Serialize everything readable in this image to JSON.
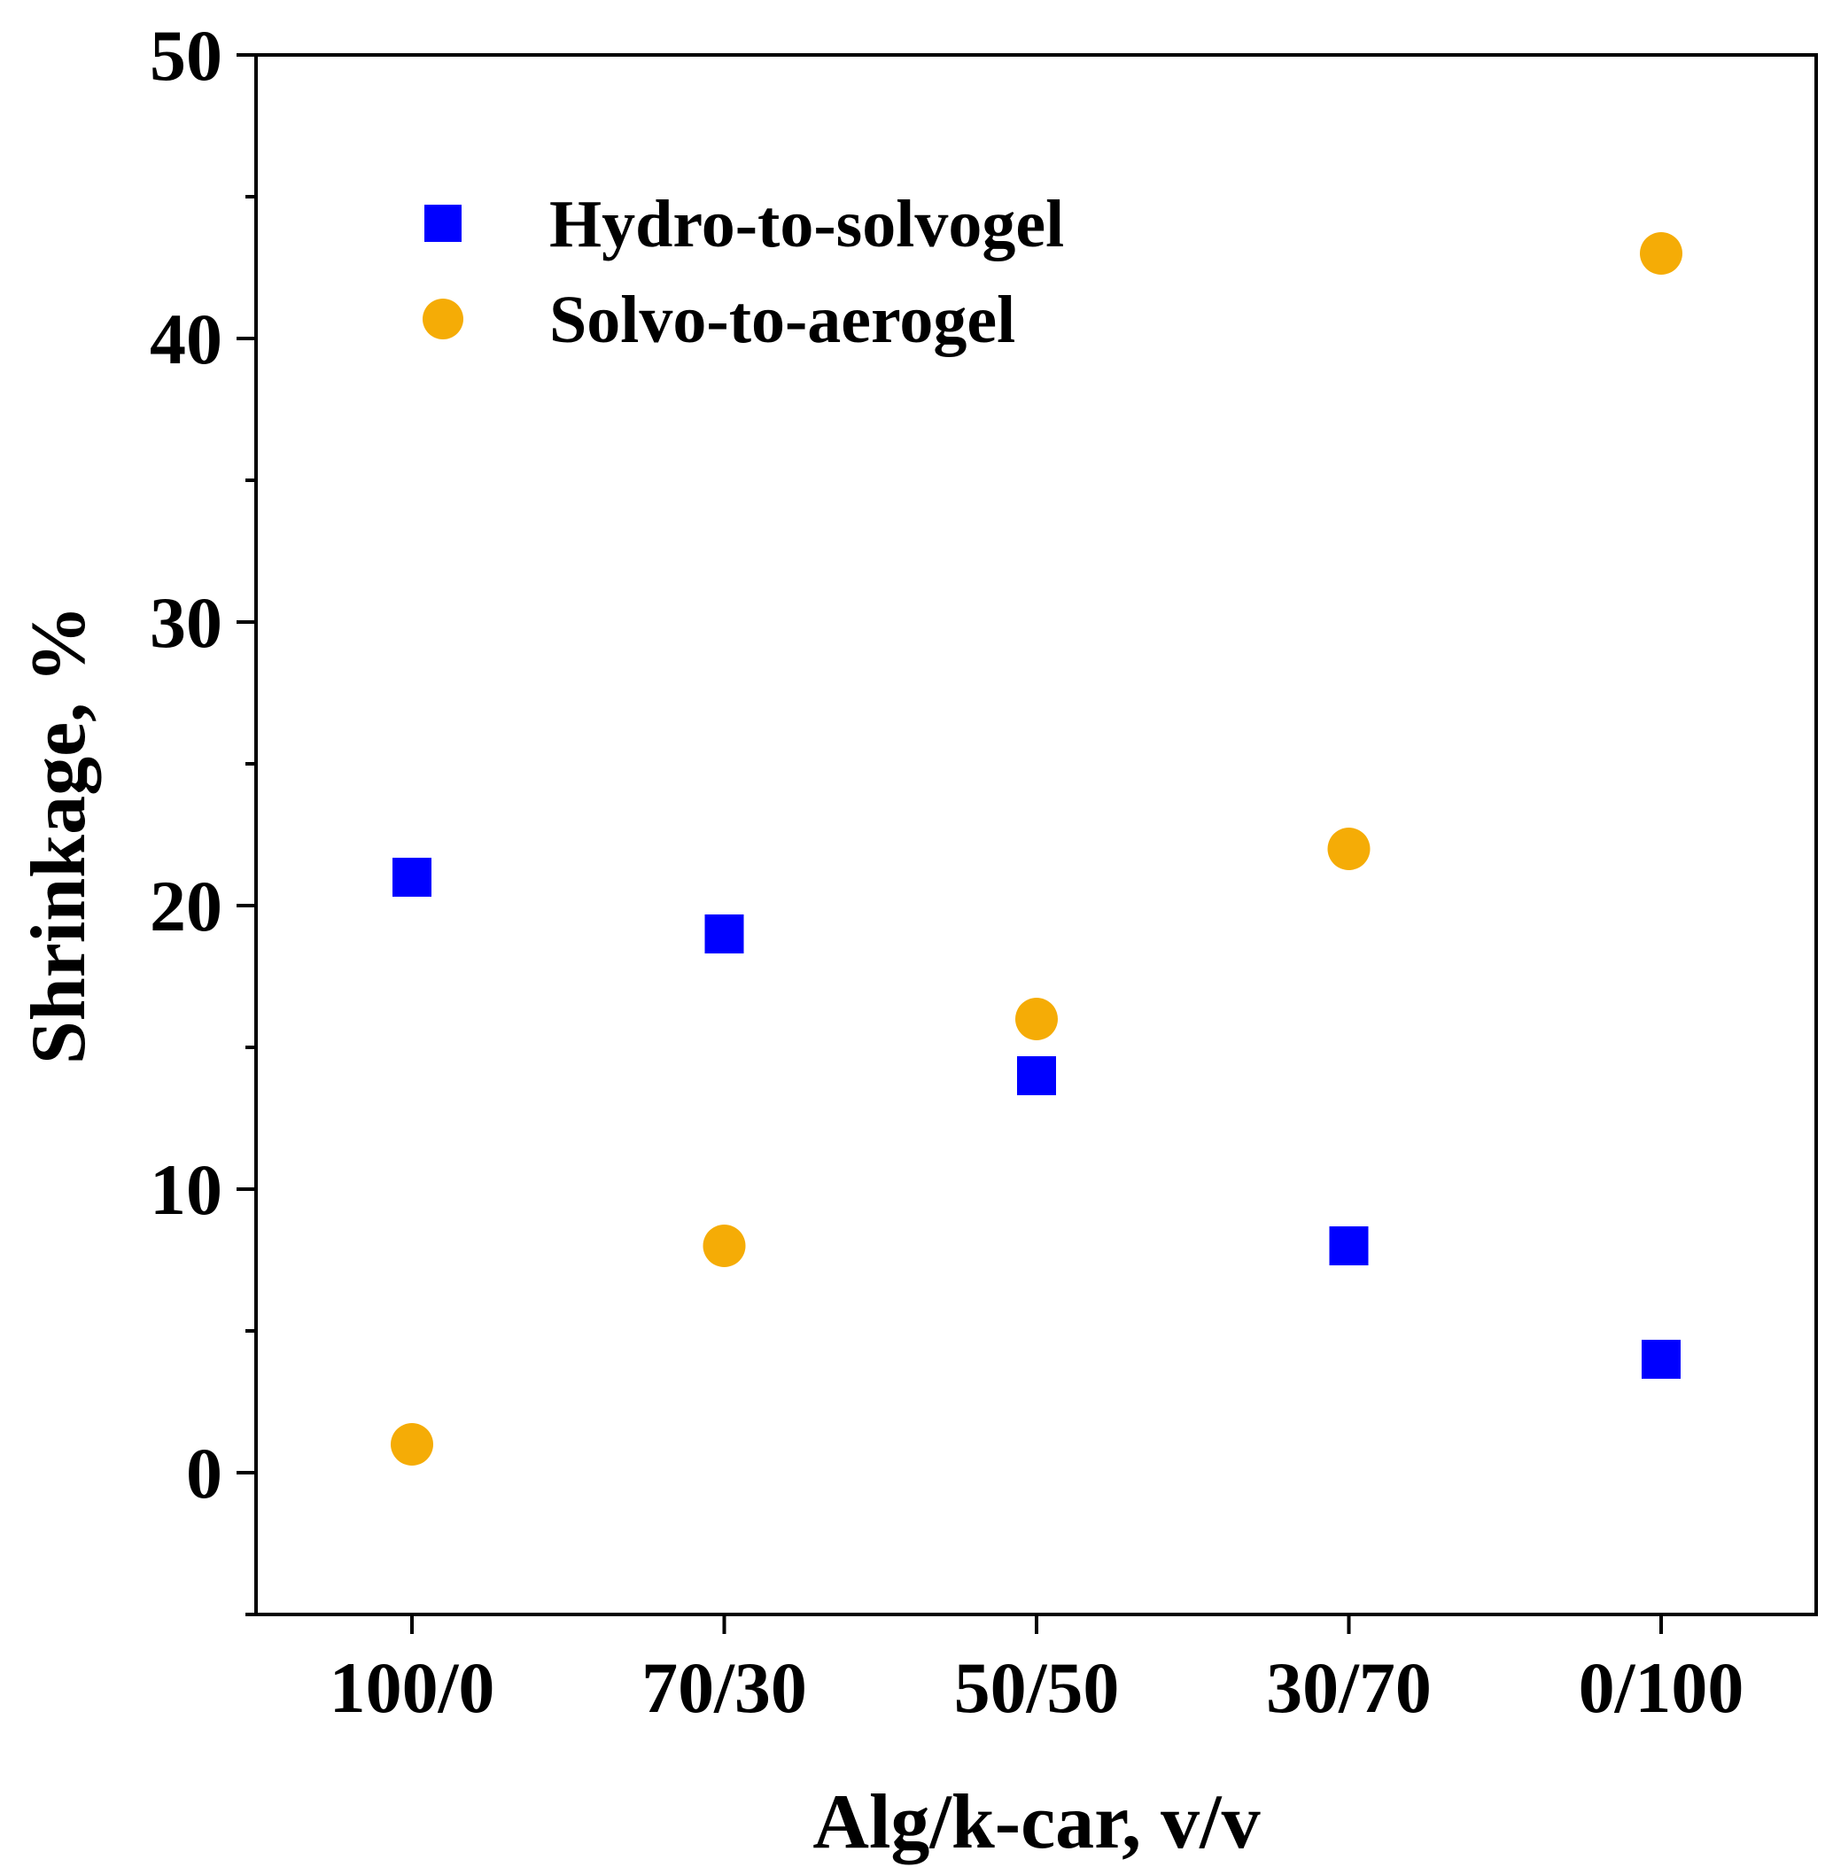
{
  "chart_data": {
    "type": "scatter",
    "title": "",
    "xlabel": "Alg/k-car, v/v",
    "ylabel": "Shrinkage, %",
    "categories": [
      "100/0",
      "70/30",
      "50/50",
      "30/70",
      "0/100"
    ],
    "ylim": [
      -5,
      50
    ],
    "yticks": [
      0,
      10,
      20,
      30,
      40,
      50
    ],
    "yminor_step": 5,
    "grid": false,
    "legend_position": "top-left",
    "series": [
      {
        "name": "Hydro-to-solvogel",
        "marker": "square",
        "color": "#0000ff",
        "values": [
          21,
          19,
          14,
          8,
          4
        ]
      },
      {
        "name": "Solvo-to-aerogel",
        "marker": "circle",
        "color": "#f5ac06",
        "values": [
          1,
          8,
          16,
          22,
          43
        ]
      }
    ]
  }
}
